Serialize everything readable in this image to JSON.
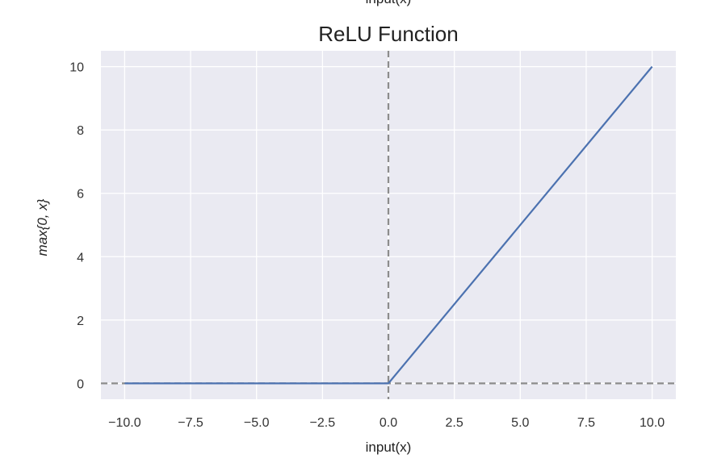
{
  "chart_data": {
    "type": "line",
    "title": "ReLU Function",
    "top_caption_fragment": "input(x)",
    "xlabel": "input(x)",
    "ylabel": "max{0, x}",
    "xlim": [
      -10.9,
      10.9
    ],
    "ylim": [
      -0.5,
      10.5
    ],
    "x_ticks": [
      -10.0,
      -7.5,
      -5.0,
      -2.5,
      0.0,
      2.5,
      5.0,
      7.5,
      10.0
    ],
    "x_tick_labels": [
      "−10.0",
      "−7.5",
      "−5.0",
      "−2.5",
      "0.0",
      "2.5",
      "5.0",
      "7.5",
      "10.0"
    ],
    "y_ticks": [
      0,
      2,
      4,
      6,
      8,
      10
    ],
    "y_tick_labels": [
      "0",
      "2",
      "4",
      "6",
      "8",
      "10"
    ],
    "grid": true,
    "series": [
      {
        "x": [
          -10,
          0,
          10
        ],
        "y": [
          0,
          0,
          10
        ],
        "color": "#4c72b0"
      }
    ],
    "reference_lines": [
      {
        "orientation": "horizontal",
        "value": 0,
        "style": "dashed",
        "color": "#8c8c8c"
      },
      {
        "orientation": "vertical",
        "value": 0,
        "style": "dashed",
        "color": "#8c8c8c"
      }
    ],
    "background_color": "#eaeaf2",
    "grid_color": "#ffffff"
  }
}
